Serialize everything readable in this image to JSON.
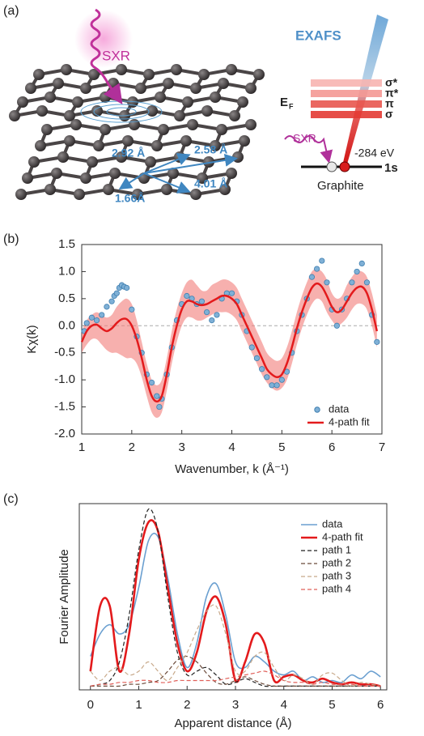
{
  "diagram": {
    "panel_label": "(a)",
    "sxr_left": "SXR",
    "distances": [
      "2.92 Å",
      "2.58 Å",
      "4.01 Å",
      "1.66Å"
    ],
    "exafs": "EXAFS",
    "levels": [
      "σ*",
      "π*",
      "π",
      "σ"
    ],
    "fermi": {
      "symbol": "E",
      "subscript": "F"
    },
    "sxr_right": "SXR",
    "energy": "-284 eV",
    "core_level": "1s",
    "material": "Graphite"
  },
  "chart_data": [
    {
      "type": "line",
      "panel_label": "(b)",
      "x_label": "Wavenumber, k (Å⁻¹)",
      "y_label": "Kχ(k)",
      "xlim": [
        1,
        7
      ],
      "ylim": [
        -2,
        1.5
      ],
      "xticks": [
        1,
        2,
        3,
        4,
        5,
        6,
        7
      ],
      "yticks": [
        1.5,
        {
          "value": 1,
          "label": "1.0"
        },
        0.5,
        {
          "value": 0,
          "label": "0.0"
        },
        -0.5,
        {
          "value": -1,
          "label": "-1.0"
        },
        -1.5,
        {
          "value": -2,
          "label": "-2.0"
        }
      ],
      "reference_line": 0,
      "legend": "lower right",
      "series": [
        {
          "name": "data",
          "type": "scatter",
          "color": "#7fb0d6",
          "edge_color": "#3f7fb0",
          "x": [
            1.05,
            1.1,
            1.2,
            1.3,
            1.4,
            1.5,
            1.6,
            1.65,
            1.7,
            1.75,
            1.8,
            1.85,
            1.9,
            2,
            2.1,
            2.2,
            2.3,
            2.4,
            2.5,
            2.55,
            2.6,
            2.7,
            2.8,
            2.9,
            3,
            3.1,
            3.2,
            3.3,
            3.4,
            3.5,
            3.6,
            3.7,
            3.8,
            3.9,
            4,
            4.1,
            4.2,
            4.3,
            4.4,
            4.5,
            4.6,
            4.7,
            4.8,
            4.9,
            5,
            5.1,
            5.2,
            5.3,
            5.4,
            5.5,
            5.6,
            5.7,
            5.8,
            5.9,
            6,
            6.1,
            6.2,
            6.3,
            6.4,
            6.5,
            6.6,
            6.7,
            6.8,
            6.9
          ],
          "values": [
            -0.1,
            0.05,
            0.15,
            0.1,
            0.2,
            0.35,
            0.45,
            0.55,
            0.6,
            0.7,
            0.75,
            0.72,
            0.7,
            0.3,
            -0.2,
            -0.5,
            -0.9,
            -1.05,
            -1.3,
            -1.5,
            -1.35,
            -0.9,
            -0.4,
            0.1,
            0.4,
            0.55,
            0.5,
            0.4,
            0.45,
            0.25,
            0.1,
            0.2,
            0.5,
            0.6,
            0.6,
            0.45,
            0.2,
            -0.1,
            -0.4,
            -0.6,
            -0.8,
            -0.95,
            -1.1,
            -1.1,
            -1,
            -0.85,
            -0.5,
            -0.1,
            0.2,
            0.5,
            0.9,
            1.05,
            1.2,
            0.8,
            0.3,
            0,
            0.3,
            0.5,
            0.8,
            1,
            1.15,
            0.8,
            0.2,
            -0.3
          ]
        },
        {
          "name": "4-path fit",
          "type": "line",
          "color": "#e31a1c",
          "width": 2.5,
          "band_color": "#f27b78",
          "x": [
            1,
            1.1,
            1.2,
            1.3,
            1.4,
            1.5,
            1.6,
            1.7,
            1.8,
            1.9,
            2,
            2.1,
            2.2,
            2.3,
            2.4,
            2.5,
            2.6,
            2.7,
            2.8,
            2.9,
            3,
            3.1,
            3.2,
            3.3,
            3.4,
            3.5,
            3.6,
            3.7,
            3.8,
            3.9,
            4,
            4.1,
            4.2,
            4.3,
            4.4,
            4.5,
            4.6,
            4.7,
            4.8,
            4.9,
            5,
            5.1,
            5.2,
            5.3,
            5.4,
            5.5,
            5.6,
            5.7,
            5.8,
            5.9,
            6,
            6.1,
            6.2,
            6.3,
            6.4,
            6.5,
            6.6,
            6.7,
            6.8,
            6.9
          ],
          "values": [
            -0.3,
            -0.1,
            0,
            0.02,
            -0.05,
            -0.1,
            -0.05,
            0.05,
            0.12,
            0.12,
            0,
            -0.25,
            -0.6,
            -1,
            -1.3,
            -1.4,
            -1.3,
            -0.9,
            -0.4,
            0,
            0.3,
            0.45,
            0.45,
            0.4,
            0.38,
            0.4,
            0.45,
            0.5,
            0.55,
            0.55,
            0.5,
            0.4,
            0.2,
            0,
            -0.2,
            -0.4,
            -0.6,
            -0.8,
            -0.9,
            -0.95,
            -0.9,
            -0.7,
            -0.4,
            -0.05,
            0.25,
            0.5,
            0.7,
            0.78,
            0.72,
            0.55,
            0.35,
            0.25,
            0.3,
            0.45,
            0.6,
            0.7,
            0.72,
            0.6,
            0.3,
            -0.1
          ],
          "upper": [
            -0.1,
            0.1,
            0.2,
            0.25,
            0.2,
            0.15,
            0.2,
            0.35,
            0.45,
            0.5,
            0.4,
            0.1,
            -0.3,
            -0.7,
            -1,
            -1.1,
            -1,
            -0.6,
            -0.1,
            0.3,
            0.6,
            0.8,
            0.85,
            0.75,
            0.65,
            0.65,
            0.75,
            0.8,
            0.85,
            0.85,
            0.8,
            0.7,
            0.5,
            0.3,
            0.1,
            -0.1,
            -0.3,
            -0.5,
            -0.6,
            -0.65,
            -0.6,
            -0.4,
            -0.1,
            0.25,
            0.55,
            0.8,
            1,
            1.05,
            1,
            0.85,
            0.6,
            0.5,
            0.55,
            0.75,
            0.9,
            1,
            1,
            0.9,
            0.6,
            0.2
          ],
          "lower": [
            -0.5,
            -0.35,
            -0.25,
            -0.25,
            -0.35,
            -0.45,
            -0.5,
            -0.5,
            -0.55,
            -0.6,
            -0.6,
            -0.7,
            -0.95,
            -1.3,
            -1.6,
            -1.7,
            -1.6,
            -1.2,
            -0.7,
            -0.3,
            0,
            0.15,
            0.15,
            0.1,
            0.1,
            0.15,
            0.2,
            0.25,
            0.25,
            0.25,
            0.2,
            0.1,
            -0.1,
            -0.3,
            -0.5,
            -0.7,
            -0.9,
            -1.05,
            -1.15,
            -1.2,
            -1.15,
            -1,
            -0.7,
            -0.35,
            -0.05,
            0.2,
            0.4,
            0.5,
            0.45,
            0.25,
            0.1,
            0,
            0.05,
            0.15,
            0.3,
            0.4,
            0.4,
            0.3,
            0,
            -0.4
          ]
        }
      ]
    },
    {
      "type": "line",
      "panel_label": "(c)",
      "x_label": "Apparent distance (Å)",
      "y_label": "Fourier Amplitude",
      "xlim": [
        -0.23,
        6.13
      ],
      "ylim": [
        0,
        1
      ],
      "xticks": [
        0,
        1,
        2,
        3,
        4,
        5,
        6
      ],
      "legend": "upper right",
      "x": [
        0,
        0.2,
        0.4,
        0.6,
        0.8,
        1,
        1.2,
        1.4,
        1.6,
        1.8,
        2,
        2.2,
        2.4,
        2.6,
        2.8,
        3,
        3.2,
        3.4,
        3.6,
        3.8,
        4,
        4.2,
        4.4,
        4.6,
        4.8,
        5,
        5.2,
        5.4,
        5.6,
        5.8,
        6
      ],
      "series": [
        {
          "name": "data",
          "type": "line",
          "color": "#6a9fd0",
          "width": 1.6,
          "values": [
            0.18,
            0.3,
            0.35,
            0.3,
            0.35,
            0.55,
            0.8,
            0.82,
            0.6,
            0.3,
            0.12,
            0.25,
            0.5,
            0.57,
            0.4,
            0.15,
            0.12,
            0.18,
            0.15,
            0.1,
            0.08,
            0.1,
            0.05,
            0.07,
            0.04,
            0.05,
            0.04,
            0.08,
            0.06,
            0.1,
            0.07
          ]
        },
        {
          "name": "4-path fit",
          "type": "line",
          "color": "#e31a1c",
          "width": 2.6,
          "values": [
            0.1,
            0.45,
            0.45,
            0.1,
            0.3,
            0.7,
            0.9,
            0.85,
            0.55,
            0.25,
            0.1,
            0.2,
            0.42,
            0.5,
            0.35,
            0.05,
            0.15,
            0.3,
            0.25,
            0.05,
            0.07,
            0.08,
            0.05,
            0.04,
            0.06,
            0.04,
            0.03,
            0.04,
            0.03,
            0.03,
            0.02
          ]
        },
        {
          "name": "path 1",
          "type": "line",
          "color": "#222222",
          "width": 1.2,
          "dash": true,
          "values": [
            0.02,
            0.03,
            0.05,
            0.15,
            0.4,
            0.75,
            0.97,
            0.85,
            0.5,
            0.2,
            0.08,
            0.1,
            0.12,
            0.08,
            0.03,
            0.04,
            0.06,
            0.04,
            0.02,
            0.02,
            0.02,
            0.02,
            0.02,
            0.02,
            0.02,
            0.02,
            0.02,
            0.02,
            0.02,
            0.02,
            0.02
          ]
        },
        {
          "name": "path 2",
          "type": "line",
          "color": "#6b4a3a",
          "width": 1.2,
          "dash": true,
          "values": [
            0.02,
            0.02,
            0.02,
            0.02,
            0.03,
            0.03,
            0.04,
            0.05,
            0.1,
            0.16,
            0.18,
            0.15,
            0.09,
            0.04,
            0.03,
            0.05,
            0.07,
            0.05,
            0.03,
            0.02,
            0.02,
            0.02,
            0.02,
            0.02,
            0.02,
            0.02,
            0.02,
            0.02,
            0.02,
            0.02,
            0.02
          ]
        },
        {
          "name": "path 3",
          "type": "line",
          "color": "#c8a98a",
          "width": 1.2,
          "dash": true,
          "values": [
            0.1,
            0.05,
            0.1,
            0.12,
            0.08,
            0.1,
            0.15,
            0.1,
            0.05,
            0.12,
            0.2,
            0.32,
            0.42,
            0.45,
            0.3,
            0.1,
            0.1,
            0.18,
            0.2,
            0.12,
            0.05,
            0.08,
            0.06,
            0.03,
            0.08,
            0.09,
            0.05,
            0.02,
            0.04,
            0.03,
            0.02
          ]
        },
        {
          "name": "path 4",
          "type": "line",
          "color": "#e0605a",
          "width": 1.2,
          "dash": true,
          "values": [
            0.02,
            0.03,
            0.03,
            0.04,
            0.04,
            0.05,
            0.05,
            0.04,
            0.04,
            0.05,
            0.05,
            0.05,
            0.05,
            0.05,
            0.06,
            0.07,
            0.08,
            0.09,
            0.1,
            0.08,
            0.05,
            0.04,
            0.04,
            0.03,
            0.04,
            0.03,
            0.03,
            0.03,
            0.02,
            0.02,
            0.02
          ]
        }
      ]
    }
  ]
}
